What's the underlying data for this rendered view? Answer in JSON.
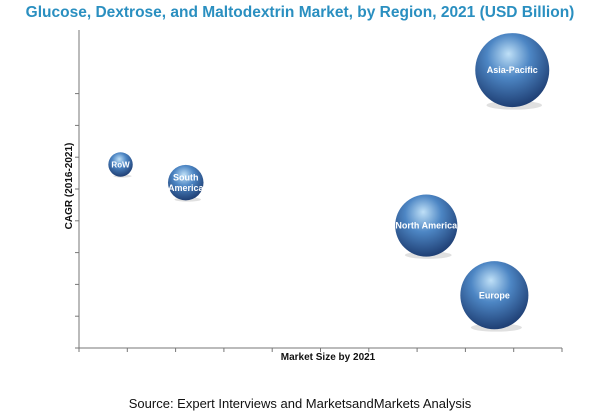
{
  "chart_data": {
    "type": "bubble",
    "title": "Glucose, Dextrose, and Maltodextrin Market, by Region, 2021 (USD Billion)",
    "xlabel": "Market Size by 2021",
    "ylabel": "CAGR (2016-2021)",
    "xlim": [
      0,
      10
    ],
    "ylim": [
      0,
      10
    ],
    "x_ticks": [
      0,
      1,
      2,
      3,
      4,
      5,
      6,
      7,
      8,
      9,
      10
    ],
    "y_ticks": [
      0,
      1,
      2,
      3,
      4,
      5,
      6,
      7,
      8
    ],
    "grid": false,
    "series": [
      {
        "points": [
          {
            "label": "Asia-Pacific",
            "x": 8.97,
            "y": 8.74,
            "size": 1.0
          },
          {
            "label": "North America",
            "x": 7.19,
            "y": 3.85,
            "size": 0.84
          },
          {
            "label": "Europe",
            "x": 8.6,
            "y": 1.66,
            "size": 0.92
          },
          {
            "label": "South America",
            "x": 2.21,
            "y": 5.2,
            "size": 0.48
          },
          {
            "label": "RoW",
            "x": 0.86,
            "y": 5.77,
            "size": 0.33
          }
        ]
      }
    ],
    "colors": {
      "title": "#2a8fc0",
      "bubble_highlight": "#bfe0f7",
      "bubble_mid": "#4d86c4",
      "bubble_dark": "#1f3f74",
      "bubble_label": "#ffffff",
      "axis": "#777777"
    }
  },
  "source": "Source: Expert Interviews and MarketsandMarkets Analysis"
}
